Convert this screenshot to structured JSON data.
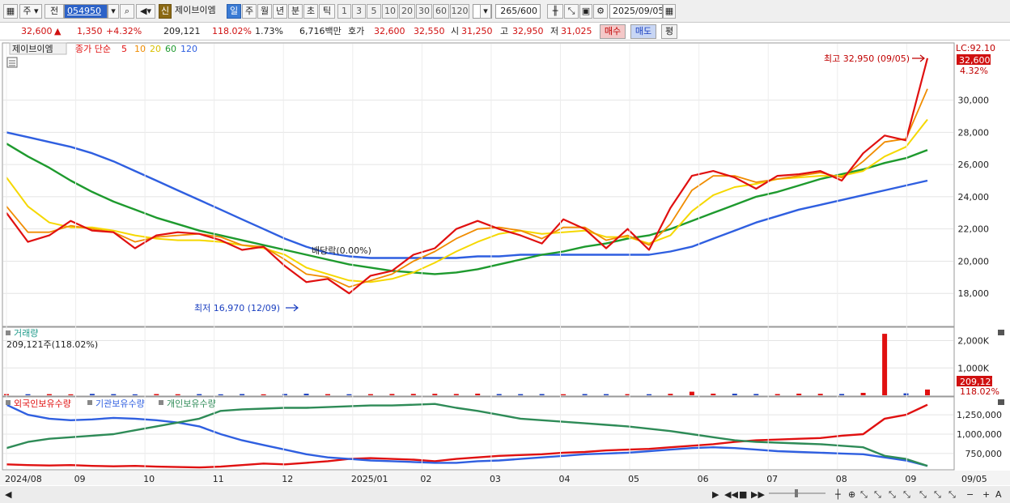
{
  "toolbar": {
    "period_label": "주",
    "prev_label": "전",
    "code": "054950",
    "new_badge": "신",
    "stock_name": "제이브이엠",
    "units": [
      "일",
      "주",
      "월",
      "년",
      "분",
      "초",
      "틱"
    ],
    "numbers": [
      "1",
      "3",
      "5",
      "10",
      "20",
      "30",
      "60",
      "120"
    ],
    "count": "265",
    "count_total": "/600",
    "date": "2025/09/05"
  },
  "quote": {
    "price": "32,600",
    "change": "1,350",
    "change_pct": "+4.32%",
    "volume": "209,121",
    "volume_pct": "118.02%",
    "turnover": "1.73%",
    "amount": "6,716백만",
    "bid_label": "호가",
    "bid1": "32,600",
    "bid2": "32,550",
    "open_label": "시",
    "open": "31,250",
    "high_label": "고",
    "high": "32,950",
    "low_label": "저",
    "low": "31,025",
    "buy_label": "매수",
    "sell_label": "매도",
    "eval_label": "평"
  },
  "legend": {
    "stock": "제이브이엠",
    "ma_prefix": "종가 단순",
    "ma_periods": [
      "5",
      "10",
      "20",
      "60",
      "120"
    ],
    "volume": "거래량",
    "volume_value": "209,121주(118.02%)",
    "holdings": [
      "외국인보유수량",
      "기관보유수량",
      "개인보유수량"
    ]
  },
  "annotations": {
    "high": "최고 32,950 (09/05)",
    "low": "최저 16,970 (12/09)",
    "dividend": "배당락(0.00%)",
    "lc": "LC:92.10",
    "price_tag": "32,600",
    "pct_tag": "4.32%",
    "vol_tag": "209,121",
    "vol_pct_tag": "118.02%"
  },
  "colors": {
    "up": "#e01010",
    "down": "#1a3fc0",
    "ma5": "#e01010",
    "ma10": "#f08c00",
    "ma20": "#f5d800",
    "ma60": "#1e9a2e",
    "ma120": "#2f5fe0",
    "foreign": "#e01010",
    "institution": "#2f5fe0",
    "individual": "#2e8b57"
  },
  "chart_data": [
    {
      "type": "line",
      "title": "",
      "ylabel": "",
      "ylim": [
        16000,
        33500
      ],
      "yticks": [
        "18,000",
        "20,000",
        "22,000",
        "24,000",
        "26,000",
        "28,000",
        "30,000"
      ],
      "x_labels": [
        "2024/08",
        "09",
        "10",
        "11",
        "12",
        "2025/01",
        "02",
        "03",
        "04",
        "05",
        "06",
        "07",
        "08",
        "09",
        "09/05"
      ],
      "series": [
        {
          "name": "5",
          "values": [
            23000,
            21200,
            21600,
            22500,
            21900,
            21800,
            20800,
            21600,
            21800,
            21700,
            21300,
            20700,
            20900,
            19700,
            18700,
            18900,
            18000,
            19100,
            19400,
            20400,
            20800,
            22000,
            22500,
            22000,
            21600,
            21100,
            22600,
            22000,
            20800,
            22000,
            20700,
            23300,
            25300,
            25600,
            25200,
            24500,
            25300,
            25400,
            25600,
            25000,
            26700,
            27800,
            27500,
            32600
          ]
        },
        {
          "name": "10",
          "values": [
            23400,
            21800,
            21800,
            22200,
            22000,
            21800,
            21200,
            21500,
            21600,
            21700,
            21500,
            21000,
            20900,
            20100,
            19200,
            19000,
            18400,
            18800,
            19200,
            20000,
            20600,
            21400,
            22000,
            22100,
            21900,
            21400,
            22100,
            22100,
            21300,
            21600,
            21000,
            22300,
            24400,
            25300,
            25300,
            24900,
            25100,
            25300,
            25500,
            25200,
            26200,
            27400,
            27600,
            30700
          ]
        },
        {
          "name": "20",
          "values": [
            25200,
            23400,
            22400,
            22100,
            22100,
            21900,
            21600,
            21400,
            21300,
            21300,
            21200,
            21000,
            20800,
            20400,
            19600,
            19200,
            18800,
            18700,
            18900,
            19300,
            19900,
            20600,
            21200,
            21700,
            21900,
            21700,
            21800,
            21900,
            21500,
            21500,
            21100,
            21600,
            23100,
            24100,
            24600,
            24800,
            25100,
            25200,
            25300,
            25300,
            25600,
            26500,
            27100,
            28800
          ]
        },
        {
          "name": "60",
          "values": [
            27300,
            26500,
            25800,
            25000,
            24300,
            23700,
            23200,
            22700,
            22300,
            21900,
            21600,
            21300,
            21000,
            20700,
            20400,
            20100,
            19800,
            19600,
            19400,
            19300,
            19200,
            19300,
            19500,
            19800,
            20100,
            20400,
            20600,
            20900,
            21100,
            21400,
            21600,
            22000,
            22500,
            23000,
            23500,
            24000,
            24300,
            24700,
            25100,
            25400,
            25700,
            26100,
            26400,
            26900
          ]
        },
        {
          "name": "120",
          "values": [
            28000,
            27700,
            27400,
            27100,
            26700,
            26200,
            25600,
            25000,
            24400,
            23800,
            23200,
            22600,
            22000,
            21400,
            20900,
            20500,
            20300,
            20200,
            20200,
            20200,
            20200,
            20200,
            20300,
            20300,
            20400,
            20400,
            20400,
            20400,
            20400,
            20400,
            20400,
            20600,
            20900,
            21400,
            21900,
            22400,
            22800,
            23200,
            23500,
            23800,
            24100,
            24400,
            24700,
            25000
          ]
        }
      ]
    },
    {
      "type": "bar",
      "title": "",
      "ylabel": "",
      "ylim": [
        0,
        2400000
      ],
      "yticks": [
        "1,000K",
        "2,000K"
      ],
      "series": [
        {
          "name": "거래량",
          "values": [
            45000,
            38000,
            42000,
            35000,
            50000,
            40000,
            36000,
            44000,
            39000,
            41000,
            37000,
            43000,
            36000,
            48000,
            55000,
            40000,
            38000,
            42000,
            46000,
            50000,
            52000,
            47000,
            60000,
            45000,
            41000,
            44000,
            39000,
            43000,
            41000,
            40000,
            38000,
            52000,
            130000,
            60000,
            55000,
            48000,
            45000,
            60000,
            52000,
            46000,
            90000,
            2250000,
            70000,
            209121
          ]
        }
      ]
    },
    {
      "type": "line",
      "title": "",
      "ylabel": "",
      "ylim": [
        550000,
        1450000
      ],
      "yticks": [
        "750,000",
        "1,000,000",
        "1,250,000"
      ],
      "series": [
        {
          "name": "외국인보유수량",
          "values": [
            610000,
            600000,
            595000,
            600000,
            590000,
            585000,
            590000,
            580000,
            575000,
            570000,
            580000,
            600000,
            620000,
            610000,
            630000,
            650000,
            680000,
            690000,
            680000,
            670000,
            650000,
            680000,
            700000,
            720000,
            730000,
            740000,
            760000,
            770000,
            790000,
            800000,
            810000,
            830000,
            850000,
            870000,
            900000,
            920000,
            930000,
            940000,
            950000,
            980000,
            1000000,
            1200000,
            1250000,
            1380000
          ]
        },
        {
          "name": "기관보유수량",
          "values": [
            1380000,
            1250000,
            1200000,
            1180000,
            1190000,
            1210000,
            1200000,
            1180000,
            1150000,
            1100000,
            1000000,
            920000,
            860000,
            800000,
            740000,
            700000,
            680000,
            660000,
            650000,
            640000,
            630000,
            630000,
            650000,
            660000,
            680000,
            700000,
            720000,
            740000,
            750000,
            760000,
            780000,
            800000,
            820000,
            830000,
            820000,
            800000,
            780000,
            770000,
            760000,
            750000,
            740000,
            700000,
            660000,
            590000
          ]
        },
        {
          "name": "개인보유수량",
          "values": [
            820000,
            900000,
            940000,
            960000,
            980000,
            1000000,
            1050000,
            1100000,
            1150000,
            1200000,
            1300000,
            1320000,
            1330000,
            1340000,
            1340000,
            1350000,
            1360000,
            1370000,
            1370000,
            1380000,
            1390000,
            1340000,
            1300000,
            1250000,
            1200000,
            1180000,
            1160000,
            1140000,
            1120000,
            1100000,
            1070000,
            1040000,
            1000000,
            960000,
            920000,
            900000,
            890000,
            880000,
            870000,
            850000,
            830000,
            720000,
            680000,
            590000
          ]
        }
      ]
    }
  ]
}
